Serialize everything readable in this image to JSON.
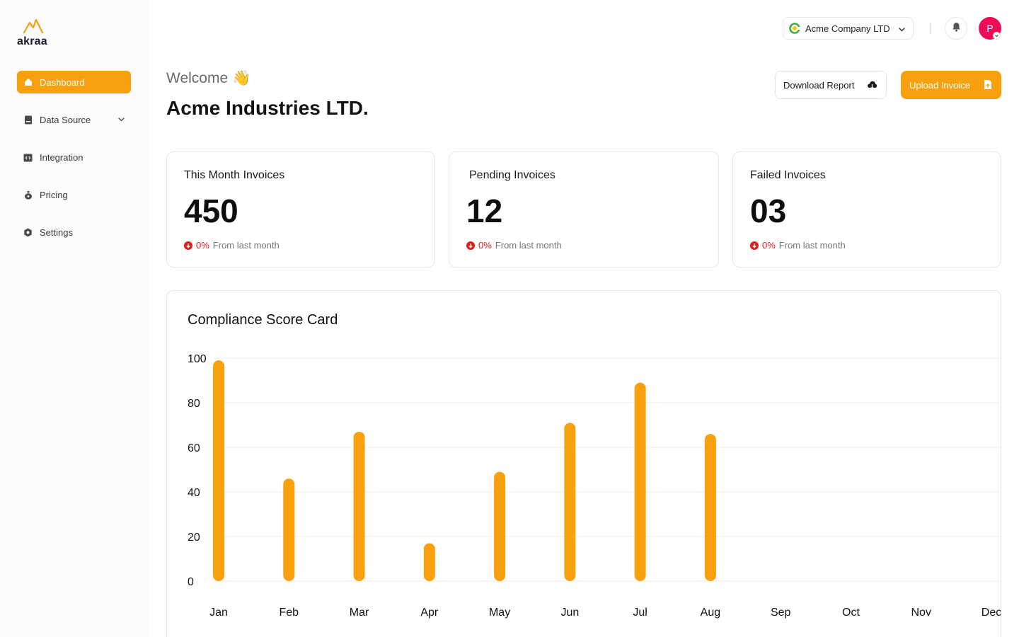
{
  "brand": {
    "name": "akraa",
    "accent": "#f9a00e"
  },
  "sidebar": {
    "items": [
      {
        "label": "Dashboard",
        "icon": "home-icon",
        "active": true
      },
      {
        "label": "Data Source",
        "icon": "database-icon",
        "has_dropdown": true
      },
      {
        "label": "Integration",
        "icon": "integration-icon"
      },
      {
        "label": "Pricing",
        "icon": "money-bag-icon"
      },
      {
        "label": "Settings",
        "icon": "gear-icon"
      }
    ]
  },
  "topbar": {
    "company_selector": "Acme Company LTD",
    "avatar_initial": "P"
  },
  "header": {
    "welcome": "Welcome 👋",
    "company": "Acme Industries LTD.",
    "download_label": "Download Report",
    "upload_label": "Upload Invoice"
  },
  "stats": [
    {
      "title": "This Month Invoices",
      "value": "450",
      "change_pct": "0%",
      "change_text": "From last month"
    },
    {
      "title": "Pending Invoices",
      "value": "12",
      "change_pct": "0%",
      "change_text": "From last month"
    },
    {
      "title": "Failed Invoices",
      "value": "03",
      "change_pct": "0%",
      "change_text": "From last month"
    }
  ],
  "chart_data": {
    "type": "bar",
    "title": "Compliance Score Card",
    "categories": [
      "Jan",
      "Feb",
      "Mar",
      "Apr",
      "May",
      "Jun",
      "Jul",
      "Aug",
      "Sep",
      "Oct",
      "Nov",
      "Dec"
    ],
    "values": [
      99,
      46,
      67,
      17,
      49,
      71,
      89,
      66,
      null,
      null,
      null,
      null
    ],
    "yticks": [
      0,
      20,
      40,
      60,
      80,
      100
    ],
    "ylim": [
      0,
      100
    ],
    "grid": true,
    "bar_color": "#f9a00e"
  }
}
